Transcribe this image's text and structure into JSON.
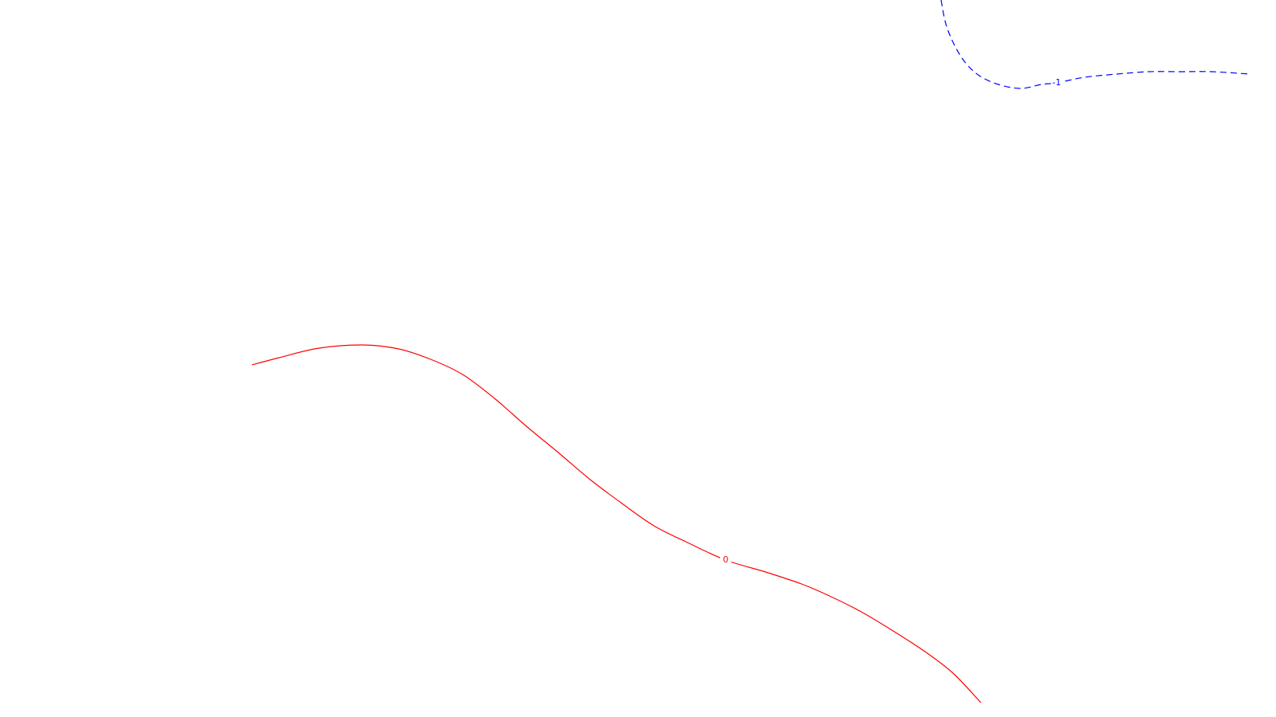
{
  "chart_data": {
    "type": "line",
    "title": "",
    "xlabel": "",
    "ylabel": "",
    "grid": false,
    "legend": "none",
    "series": [
      {
        "label": "-1",
        "color": "#0000ff",
        "dash": "dashed",
        "points": [
          [
            1180,
            0
          ],
          [
            1186,
            30
          ],
          [
            1196,
            55
          ],
          [
            1210,
            78
          ],
          [
            1228,
            95
          ],
          [
            1252,
            106
          ],
          [
            1280,
            111
          ],
          [
            1306,
            106
          ],
          [
            1325,
            104
          ],
          [
            1360,
            97
          ],
          [
            1400,
            93
          ],
          [
            1440,
            90
          ],
          [
            1480,
            90
          ],
          [
            1520,
            90
          ],
          [
            1568,
            93
          ]
        ]
      },
      {
        "label": "0",
        "color": "#ff0000",
        "dash": "solid",
        "points": [
          [
            316,
            458
          ],
          [
            350,
            449
          ],
          [
            400,
            437
          ],
          [
            455,
            433
          ],
          [
            500,
            438
          ],
          [
            540,
            451
          ],
          [
            580,
            470
          ],
          [
            620,
            500
          ],
          [
            660,
            535
          ],
          [
            700,
            568
          ],
          [
            740,
            602
          ],
          [
            780,
            632
          ],
          [
            820,
            660
          ],
          [
            860,
            680
          ],
          [
            910,
            703
          ],
          [
            960,
            718
          ],
          [
            1005,
            733
          ],
          [
            1040,
            748
          ],
          [
            1080,
            768
          ],
          [
            1120,
            792
          ],
          [
            1160,
            818
          ],
          [
            1195,
            845
          ],
          [
            1230,
            882
          ]
        ]
      }
    ]
  }
}
